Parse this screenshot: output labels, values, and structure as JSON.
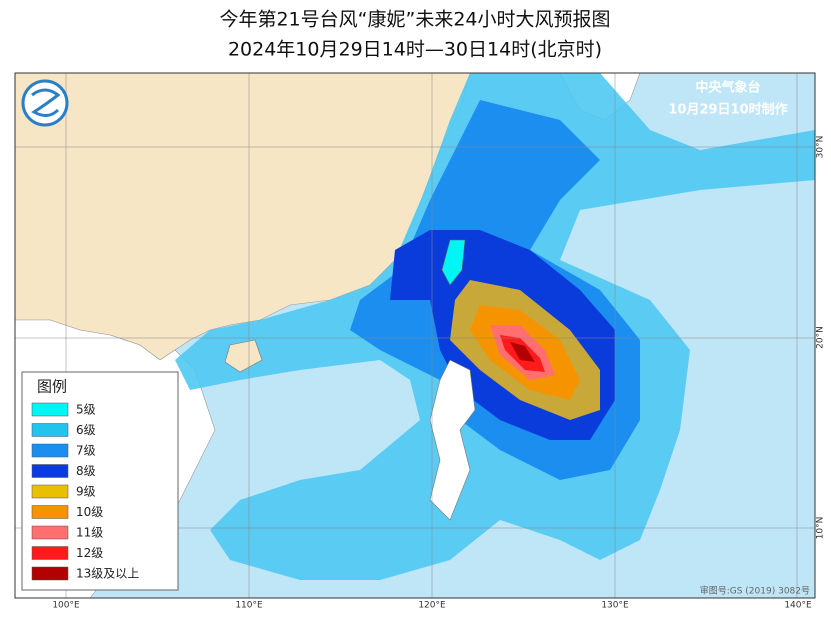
{
  "header": {
    "title": "今年第21号台风“康妮”未来24小时大风预报图",
    "subtitle": "2024年10月29日14时—30日14时(北京时)"
  },
  "agency": {
    "name": "中央气象台",
    "made": "10月29日10时制作"
  },
  "legend": {
    "title": "图例",
    "items": [
      {
        "label": "5级",
        "color": "#00f5f5"
      },
      {
        "label": "6级",
        "color": "#22c4ee"
      },
      {
        "label": "7级",
        "color": "#1b8ef0"
      },
      {
        "label": "8级",
        "color": "#0a3cdc"
      },
      {
        "label": "9级",
        "color": "#e8c000"
      },
      {
        "label": "10级",
        "color": "#f59400"
      },
      {
        "label": "11级",
        "color": "#ff6f6f"
      },
      {
        "label": "12级",
        "color": "#ff1b1b"
      },
      {
        "label": "13级及以上",
        "color": "#b30000"
      }
    ]
  },
  "map": {
    "lon_labels": [
      "100°E",
      "110°E",
      "120°E",
      "130°E",
      "140°E"
    ],
    "lat_labels": [
      "30°N",
      "20°N",
      "10°N"
    ],
    "review": "审图号:GS (2019) 3082号"
  }
}
